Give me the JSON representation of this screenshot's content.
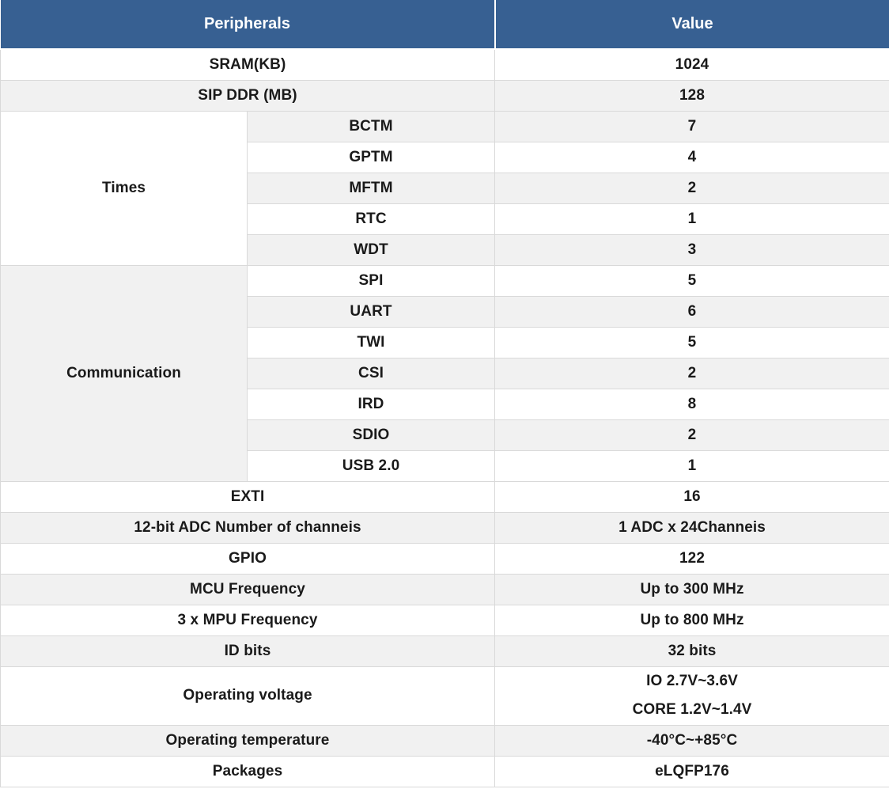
{
  "colors": {
    "header_bg": "#376092",
    "header_text": "#ffffff",
    "stripe_bg": "#f1f1f1",
    "border": "#d9d9d9",
    "text": "#1a1a1a"
  },
  "header": {
    "peripherals": "Peripherals",
    "value": "Value"
  },
  "rows_top": [
    {
      "label": "SRAM(KB)",
      "value": "1024"
    },
    {
      "label": "SIP DDR (MB)",
      "value": "128"
    }
  ],
  "groups": [
    {
      "label": "Times",
      "items": [
        {
          "label": "BCTM",
          "value": "7"
        },
        {
          "label": "GPTM",
          "value": "4"
        },
        {
          "label": "MFTM",
          "value": "2"
        },
        {
          "label": "RTC",
          "value": "1"
        },
        {
          "label": "WDT",
          "value": "3"
        }
      ]
    },
    {
      "label": "Communication",
      "items": [
        {
          "label": "SPI",
          "value": "5"
        },
        {
          "label": "UART",
          "value": "6"
        },
        {
          "label": "TWI",
          "value": "5"
        },
        {
          "label": "CSI",
          "value": "2"
        },
        {
          "label": "IRD",
          "value": "8"
        },
        {
          "label": "SDIO",
          "value": "2"
        },
        {
          "label": "USB 2.0",
          "value": "1"
        }
      ]
    }
  ],
  "rows_bottom": [
    {
      "label": "EXTI",
      "value": "16"
    },
    {
      "label": "12-bit ADC Number of channeis",
      "value": "1 ADC x 24Channeis"
    },
    {
      "label": "GPIO",
      "value": "122"
    },
    {
      "label": "MCU Frequency",
      "value": "Up to 300 MHz"
    },
    {
      "label": "3 x MPU Frequency",
      "value": "Up to 800 MHz"
    },
    {
      "label": "ID bits",
      "value": "32 bits"
    },
    {
      "label": "Operating voltage",
      "value_lines": [
        "IO 2.7V~3.6V",
        "CORE 1.2V~1.4V"
      ]
    },
    {
      "label": "Operating temperature",
      "value": "-40°C~+85°C"
    },
    {
      "label": "Packages",
      "value": "eLQFP176"
    }
  ]
}
